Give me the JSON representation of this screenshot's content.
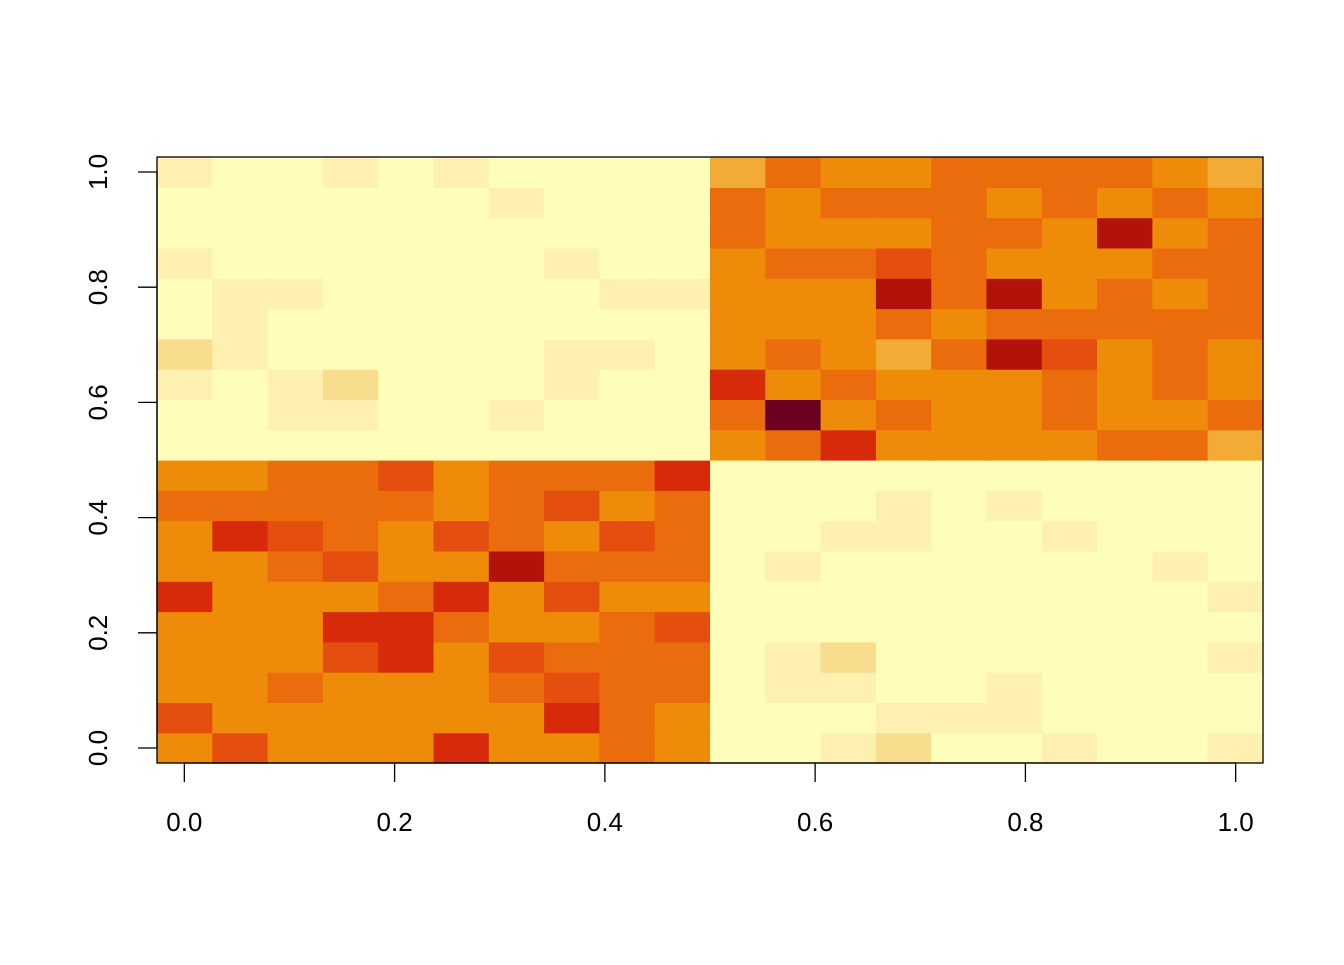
{
  "chart_data": {
    "type": "heatmap",
    "colors": [
      "#FEFEBA",
      "#FDF0B0",
      "#F8DD8E",
      "#F2AC36",
      "#EE8C0A",
      "#EB6C0C",
      "#E44E0E",
      "#D62A0A",
      "#B11209",
      "#6C0022"
    ],
    "zlim": [
      0,
      9
    ],
    "xlim": [
      -0.026,
      1.026
    ],
    "ylim": [
      -0.026,
      1.026
    ],
    "xticks": [
      {
        "value": 0,
        "label": "0.0"
      },
      0.2,
      0.4,
      0.6,
      0.8,
      {
        "value": 1,
        "label": "1.0"
      }
    ],
    "yticks": [
      {
        "value": 0,
        "label": "0.0"
      },
      0.2,
      0.4,
      0.6,
      0.8,
      {
        "value": 1,
        "label": "1.0"
      }
    ],
    "z": [
      [
        4,
        6,
        4,
        4,
        4,
        7,
        4,
        4,
        5,
        4,
        0,
        0,
        1,
        2,
        0,
        0,
        1,
        0,
        0,
        1
      ],
      [
        6,
        4,
        4,
        4,
        4,
        4,
        4,
        7,
        5,
        4,
        0,
        0,
        0,
        1,
        1,
        1,
        0,
        0,
        0,
        0
      ],
      [
        4,
        4,
        5,
        4,
        4,
        4,
        5,
        6,
        5,
        5,
        0,
        1,
        1,
        0,
        0,
        1,
        0,
        0,
        0,
        0
      ],
      [
        4,
        4,
        4,
        6,
        7,
        4,
        6,
        5,
        5,
        5,
        0,
        1,
        2,
        0,
        0,
        0,
        0,
        0,
        0,
        1
      ],
      [
        4,
        4,
        4,
        7,
        7,
        5,
        4,
        4,
        5,
        6,
        0,
        0,
        0,
        0,
        0,
        0,
        0,
        0,
        0,
        0
      ],
      [
        7,
        4,
        4,
        4,
        5,
        7,
        4,
        6,
        4,
        4,
        0,
        0,
        0,
        0,
        0,
        0,
        0,
        0,
        0,
        1
      ],
      [
        4,
        4,
        5,
        6,
        4,
        4,
        8,
        5,
        5,
        5,
        0,
        1,
        0,
        0,
        0,
        0,
        0,
        0,
        1,
        0
      ],
      [
        4,
        7,
        6,
        5,
        4,
        6,
        5,
        4,
        6,
        5,
        0,
        0,
        1,
        1,
        0,
        0,
        1,
        0,
        0,
        0
      ],
      [
        5,
        5,
        5,
        5,
        5,
        4,
        5,
        6,
        4,
        5,
        0,
        0,
        0,
        1,
        0,
        1,
        0,
        0,
        0,
        0
      ],
      [
        4,
        4,
        5,
        5,
        6,
        4,
        5,
        5,
        5,
        7,
        0,
        0,
        0,
        0,
        0,
        0,
        0,
        0,
        0,
        0
      ],
      [
        0,
        0,
        0,
        0,
        0,
        0,
        0,
        0,
        0,
        0,
        4,
        5,
        7,
        4,
        4,
        4,
        4,
        5,
        5,
        3
      ],
      [
        0,
        0,
        1,
        1,
        0,
        0,
        1,
        0,
        0,
        0,
        5,
        9,
        4,
        5,
        4,
        4,
        5,
        4,
        4,
        5
      ],
      [
        1,
        0,
        1,
        2,
        0,
        0,
        0,
        1,
        0,
        0,
        7,
        4,
        5,
        4,
        4,
        4,
        5,
        4,
        5,
        4
      ],
      [
        2,
        1,
        0,
        0,
        0,
        0,
        0,
        1,
        1,
        0,
        4,
        5,
        4,
        3,
        5,
        8,
        6,
        4,
        5,
        4
      ],
      [
        0,
        1,
        0,
        0,
        0,
        0,
        0,
        0,
        0,
        0,
        4,
        4,
        4,
        5,
        4,
        5,
        5,
        5,
        5,
        5
      ],
      [
        0,
        1,
        1,
        0,
        0,
        0,
        0,
        0,
        1,
        1,
        4,
        4,
        4,
        8,
        5,
        8,
        4,
        5,
        4,
        5
      ],
      [
        1,
        0,
        0,
        0,
        0,
        0,
        0,
        1,
        0,
        0,
        4,
        5,
        5,
        6,
        5,
        4,
        4,
        4,
        5,
        5
      ],
      [
        0,
        0,
        0,
        0,
        0,
        0,
        0,
        0,
        0,
        0,
        5,
        4,
        4,
        4,
        5,
        5,
        4,
        8,
        4,
        5
      ],
      [
        0,
        0,
        0,
        0,
        0,
        0,
        1,
        0,
        0,
        0,
        5,
        4,
        5,
        5,
        5,
        4,
        5,
        4,
        5,
        4
      ],
      [
        1,
        0,
        0,
        1,
        0,
        1,
        0,
        0,
        0,
        0,
        3,
        5,
        4,
        4,
        5,
        5,
        5,
        5,
        4,
        3
      ]
    ]
  }
}
